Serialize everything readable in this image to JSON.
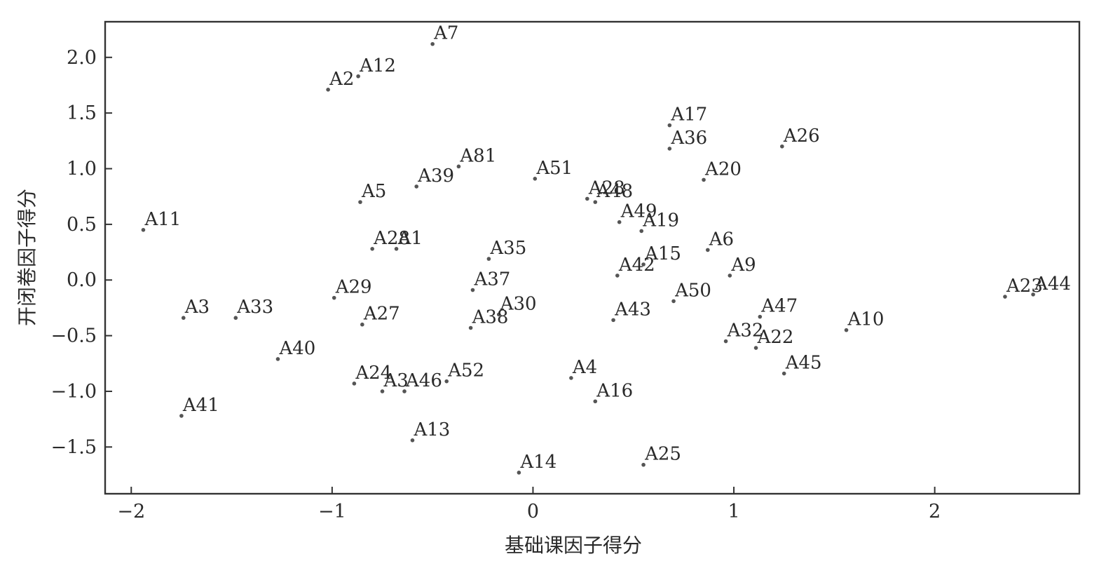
{
  "chart_data": {
    "type": "scatter",
    "xlabel": "基础课因子得分",
    "ylabel": "开闭卷因子得分",
    "xlim": [
      -2.13,
      2.72
    ],
    "ylim": [
      -1.92,
      2.32
    ],
    "xticks": [
      -2,
      -1,
      0,
      1,
      2
    ],
    "yticks": [
      -1.5,
      -1.0,
      -0.5,
      0.0,
      0.5,
      1.0,
      1.5,
      2.0
    ],
    "xtick_labels": [
      "−2",
      "−1",
      "0",
      "1",
      "2"
    ],
    "ytick_labels": [
      "−1.5",
      "−1.0",
      "−0.5",
      "0.0",
      "0.5",
      "1.0",
      "1.5",
      "2.0"
    ],
    "grid": false,
    "legend": "none",
    "colors": {
      "point": "#555555",
      "text": "#2a2a2a",
      "frame": "#333333"
    },
    "points": [
      {
        "label": "A7",
        "x": -0.5,
        "y": 2.12
      },
      {
        "label": "A12",
        "x": -0.87,
        "y": 1.83
      },
      {
        "label": "A2",
        "x": -1.02,
        "y": 1.71
      },
      {
        "label": "A17",
        "x": 0.68,
        "y": 1.39
      },
      {
        "label": "A36",
        "x": 0.68,
        "y": 1.18
      },
      {
        "label": "A26",
        "x": 1.24,
        "y": 1.2
      },
      {
        "label": "A81",
        "x": -0.37,
        "y": 1.02
      },
      {
        "label": "A51",
        "x": 0.01,
        "y": 0.91
      },
      {
        "label": "A39",
        "x": -0.58,
        "y": 0.84
      },
      {
        "label": "A20",
        "x": 0.85,
        "y": 0.9
      },
      {
        "label": "A28",
        "x": 0.27,
        "y": 0.73
      },
      {
        "label": "A48",
        "x": 0.31,
        "y": 0.7
      },
      {
        "label": "A5",
        "x": -0.86,
        "y": 0.7
      },
      {
        "label": "A11",
        "x": -1.94,
        "y": 0.45
      },
      {
        "label": "A49",
        "x": 0.43,
        "y": 0.52
      },
      {
        "label": "A19",
        "x": 0.54,
        "y": 0.44
      },
      {
        "label": "A28",
        "x": -0.8,
        "y": 0.28
      },
      {
        "label": "A1",
        "x": -0.68,
        "y": 0.28
      },
      {
        "label": "A6",
        "x": 0.87,
        "y": 0.27
      },
      {
        "label": "A35",
        "x": -0.22,
        "y": 0.19
      },
      {
        "label": "A15",
        "x": 0.55,
        "y": 0.14
      },
      {
        "label": "A42",
        "x": 0.42,
        "y": 0.04
      },
      {
        "label": "A9",
        "x": 0.98,
        "y": 0.04
      },
      {
        "label": "A37",
        "x": -0.3,
        "y": -0.09
      },
      {
        "label": "A29",
        "x": -0.99,
        "y": -0.16
      },
      {
        "label": "A23",
        "x": 2.35,
        "y": -0.15
      },
      {
        "label": "A44",
        "x": 2.49,
        "y": -0.13
      },
      {
        "label": "A50",
        "x": 0.7,
        "y": -0.19
      },
      {
        "label": "A3",
        "x": -1.74,
        "y": -0.34
      },
      {
        "label": "A33",
        "x": -1.48,
        "y": -0.34
      },
      {
        "label": "A30",
        "x": -0.17,
        "y": -0.31
      },
      {
        "label": "A47",
        "x": 1.13,
        "y": -0.33
      },
      {
        "label": "A43",
        "x": 0.4,
        "y": -0.36
      },
      {
        "label": "A27",
        "x": -0.85,
        "y": -0.4
      },
      {
        "label": "A38",
        "x": -0.31,
        "y": -0.43
      },
      {
        "label": "A10",
        "x": 1.56,
        "y": -0.45
      },
      {
        "label": "A32",
        "x": 0.96,
        "y": -0.55
      },
      {
        "label": "A22",
        "x": 1.11,
        "y": -0.61
      },
      {
        "label": "A40",
        "x": -1.27,
        "y": -0.71
      },
      {
        "label": "A45",
        "x": 1.25,
        "y": -0.84
      },
      {
        "label": "A4",
        "x": 0.19,
        "y": -0.88
      },
      {
        "label": "A52",
        "x": -0.43,
        "y": -0.91
      },
      {
        "label": "A24",
        "x": -0.89,
        "y": -0.93
      },
      {
        "label": "A3",
        "x": -0.75,
        "y": -1.0
      },
      {
        "label": "A46",
        "x": -0.64,
        "y": -1.0
      },
      {
        "label": "A16",
        "x": 0.31,
        "y": -1.09
      },
      {
        "label": "A41",
        "x": -1.75,
        "y": -1.22
      },
      {
        "label": "A13",
        "x": -0.6,
        "y": -1.44
      },
      {
        "label": "A25",
        "x": 0.55,
        "y": -1.66
      },
      {
        "label": "A14",
        "x": -0.07,
        "y": -1.73
      }
    ]
  }
}
